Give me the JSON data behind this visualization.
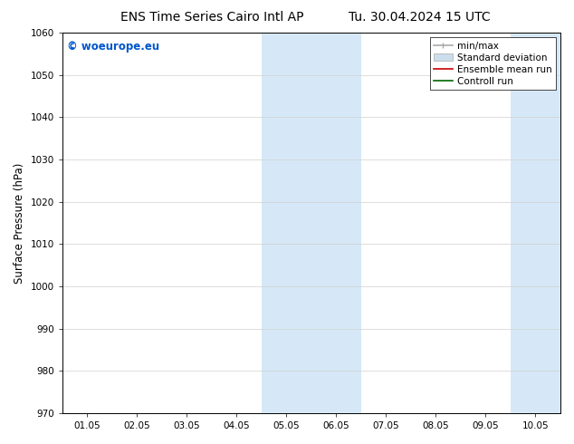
{
  "title_left": "ENS Time Series Cairo Intl AP",
  "title_right": "Tu. 30.04.2024 15 UTC",
  "ylabel": "Surface Pressure (hPa)",
  "ylim": [
    970,
    1060
  ],
  "yticks": [
    970,
    980,
    990,
    1000,
    1010,
    1020,
    1030,
    1040,
    1050,
    1060
  ],
  "xtick_labels": [
    "01.05",
    "02.05",
    "03.05",
    "04.05",
    "05.05",
    "06.05",
    "07.05",
    "08.05",
    "09.05",
    "10.05"
  ],
  "x_values": [
    0,
    1,
    2,
    3,
    4,
    5,
    6,
    7,
    8,
    9
  ],
  "xlim": [
    -0.5,
    9.5
  ],
  "shaded_regions": [
    {
      "x_start": 3.5,
      "x_end": 5.5
    },
    {
      "x_start": 8.5,
      "x_end": 9.5
    }
  ],
  "shaded_color": "#d6e8f7",
  "background_color": "#ffffff",
  "watermark_text": "© woeurope.eu",
  "watermark_color": "#0055cc",
  "legend_entries": [
    {
      "label": "min/max",
      "color": "#aaaaaa",
      "linestyle": "-",
      "linewidth": 1.2
    },
    {
      "label": "Standard deviation",
      "color": "#ccdded",
      "linestyle": "-",
      "linewidth": 6
    },
    {
      "label": "Ensemble mean run",
      "color": "#cc0000",
      "linestyle": "-",
      "linewidth": 1.2
    },
    {
      "label": "Controll run",
      "color": "#006600",
      "linestyle": "-",
      "linewidth": 1.2
    }
  ],
  "title_fontsize": 10,
  "tick_fontsize": 7.5,
  "ylabel_fontsize": 8.5,
  "watermark_fontsize": 8.5,
  "legend_fontsize": 7.5
}
